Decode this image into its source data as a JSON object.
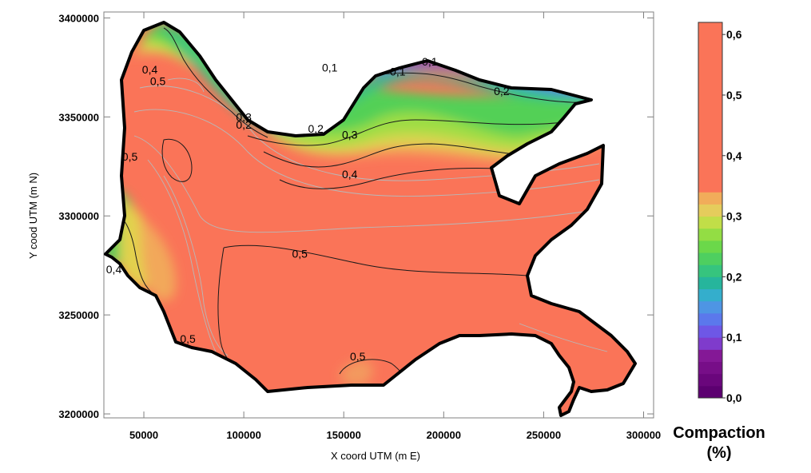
{
  "chart_data": {
    "type": "heatmap",
    "subtype": "filled-contour map",
    "title": "",
    "xlabel": "X coord UTM (m E)",
    "ylabel": "Y cood UTM (m N)",
    "xlim": [
      30000,
      305000
    ],
    "ylim": [
      3198000,
      3403000
    ],
    "x_ticks": [
      {
        "value": 50000,
        "label": "50000"
      },
      {
        "value": 100000,
        "label": "100000"
      },
      {
        "value": 150000,
        "label": "150000"
      },
      {
        "value": 200000,
        "label": "200000"
      },
      {
        "value": 250000,
        "label": "250000"
      },
      {
        "value": 300000,
        "label": "300000"
      }
    ],
    "y_ticks": [
      {
        "value": 3200000,
        "label": "3200000"
      },
      {
        "value": 3250000,
        "label": "3250000"
      },
      {
        "value": 3300000,
        "label": "3300000"
      },
      {
        "value": 3350000,
        "label": "3350000"
      },
      {
        "value": 3400000,
        "label": "3400000"
      }
    ],
    "colorbar": {
      "title_line1": "Compaction",
      "title_line2": "(%)",
      "range": [
        0.0,
        0.62
      ],
      "ticks": [
        {
          "value": 0.0,
          "label": "0,0"
        },
        {
          "value": 0.1,
          "label": "0,1"
        },
        {
          "value": 0.2,
          "label": "0,2"
        },
        {
          "value": 0.3,
          "label": "0,3"
        },
        {
          "value": 0.4,
          "label": "0,4"
        },
        {
          "value": 0.5,
          "label": "0,5"
        },
        {
          "value": 0.6,
          "label": "0,6"
        }
      ],
      "band_colors": [
        "#5c0070",
        "#6a067c",
        "#770e88",
        "#841896",
        "#7f3bcc",
        "#6e57e6",
        "#5b78ec",
        "#4e95e4",
        "#34aecc",
        "#26b59c",
        "#36c47e",
        "#4ecf60",
        "#6bd84a",
        "#93dd44",
        "#c1de48",
        "#e5cc5c",
        "#f1ac5a",
        "#fa7458",
        "#fa7458",
        "#fa7458",
        "#fa7458",
        "#fa7458",
        "#fa7458",
        "#fa7458",
        "#fa7458",
        "#fa7458",
        "#fa7458",
        "#fa7458",
        "#fa7458",
        "#fa7458",
        "#fa7458"
      ]
    },
    "contour_labels": [
      {
        "text": "0,1",
        "x": 143000,
        "y": 3373000
      },
      {
        "text": "0,1",
        "x": 177000,
        "y": 3371000
      },
      {
        "text": "0,1",
        "x": 193000,
        "y": 3376000
      },
      {
        "text": "0,2",
        "x": 229000,
        "y": 3361000
      },
      {
        "text": "0,2",
        "x": 136000,
        "y": 3342000
      },
      {
        "text": "0,2",
        "x": 100000,
        "y": 3344000
      },
      {
        "text": "0,3",
        "x": 100000,
        "y": 3348000
      },
      {
        "text": "0,3",
        "x": 153000,
        "y": 3339000
      },
      {
        "text": "0,4",
        "x": 153000,
        "y": 3319000
      },
      {
        "text": "0,4",
        "x": 53000,
        "y": 3372000
      },
      {
        "text": "0,5",
        "x": 57000,
        "y": 3366000
      },
      {
        "text": "0,5",
        "x": 43000,
        "y": 3328000
      },
      {
        "text": "0,5",
        "x": 128000,
        "y": 3279000
      },
      {
        "text": "0,4",
        "x": 35000,
        "y": 3271000
      },
      {
        "text": "0,5",
        "x": 72000,
        "y": 3236000
      },
      {
        "text": "0,5",
        "x": 157000,
        "y": 3227000
      }
    ],
    "grid": false
  }
}
